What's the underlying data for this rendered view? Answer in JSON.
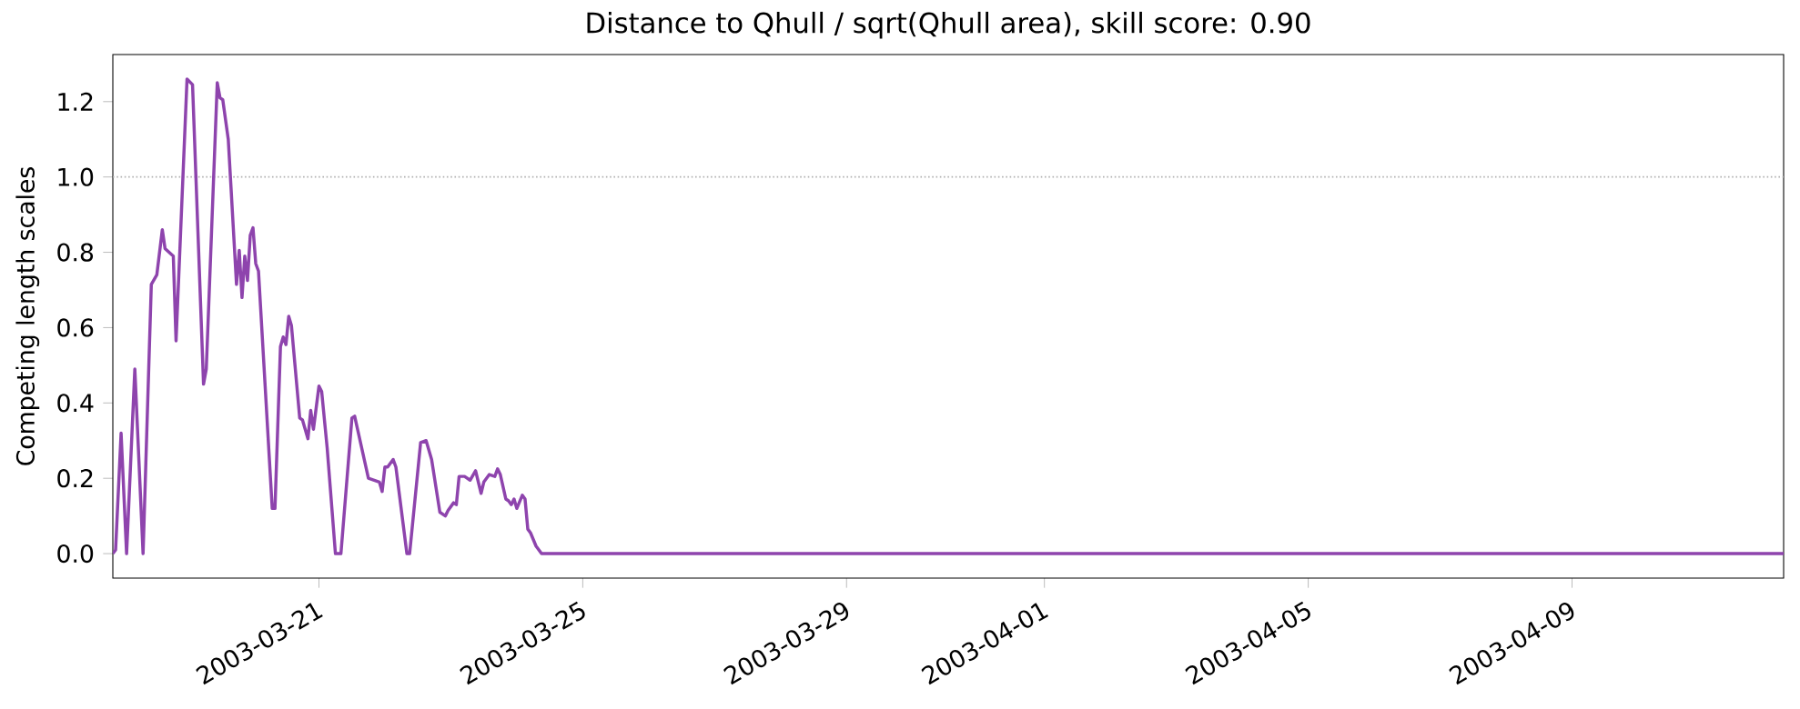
{
  "chart_data": {
    "type": "line",
    "title": "Distance to Qhull / sqrt(Qhull area), skill score: 0.90",
    "ylabel": "Competing length scales",
    "x": [
      "2003-03-17T21:00",
      "2003-03-17T22:00",
      "2003-03-18T00:00",
      "2003-03-18T02:00",
      "2003-03-18T05:00",
      "2003-03-18T08:00",
      "2003-03-18T11:00",
      "2003-03-18T13:00",
      "2003-03-18T15:00",
      "2003-03-18T16:00",
      "2003-03-18T19:00",
      "2003-03-18T20:00",
      "2003-03-19T00:00",
      "2003-03-19T02:00",
      "2003-03-19T06:00",
      "2003-03-19T07:00",
      "2003-03-19T11:00",
      "2003-03-19T12:00",
      "2003-03-19T13:00",
      "2003-03-19T15:00",
      "2003-03-19T18:00",
      "2003-03-19T19:00",
      "2003-03-19T20:00",
      "2003-03-19T21:00",
      "2003-03-19T22:00",
      "2003-03-19T23:00",
      "2003-03-20T00:00",
      "2003-03-20T01:00",
      "2003-03-20T02:00",
      "2003-03-20T07:00",
      "2003-03-20T08:00",
      "2003-03-20T10:00",
      "2003-03-20T11:00",
      "2003-03-20T12:00",
      "2003-03-20T13:00",
      "2003-03-20T14:00",
      "2003-03-20T17:00",
      "2003-03-20T18:00",
      "2003-03-20T20:00",
      "2003-03-20T21:00",
      "2003-03-20T22:00",
      "2003-03-21T00:00",
      "2003-03-21T01:00",
      "2003-03-21T03:00",
      "2003-03-21T06:00",
      "2003-03-21T08:00",
      "2003-03-21T12:00",
      "2003-03-21T13:00",
      "2003-03-21T18:00",
      "2003-03-21T22:00",
      "2003-03-21T23:00",
      "2003-03-22T00:00",
      "2003-03-22T01:00",
      "2003-03-22T03:00",
      "2003-03-22T04:00",
      "2003-03-22T08:00",
      "2003-03-22T09:00",
      "2003-03-22T13:00",
      "2003-03-22T15:00",
      "2003-03-22T17:00",
      "2003-03-22T20:00",
      "2003-03-22T22:00",
      "2003-03-22T23:00",
      "2003-03-23T01:00",
      "2003-03-23T02:00",
      "2003-03-23T03:00",
      "2003-03-23T05:00",
      "2003-03-23T07:00",
      "2003-03-23T09:00",
      "2003-03-23T11:00",
      "2003-03-23T12:00",
      "2003-03-23T14:00",
      "2003-03-23T16:00",
      "2003-03-23T17:00",
      "2003-03-23T18:00",
      "2003-03-23T20:00",
      "2003-03-23T21:00",
      "2003-03-23T22:00",
      "2003-03-23T23:00",
      "2003-03-24T00:00",
      "2003-03-24T02:00",
      "2003-03-24T03:00",
      "2003-03-24T04:00",
      "2003-03-24T05:00",
      "2003-03-24T07:00",
      "2003-03-24T09:00",
      "2003-04-12T05:00"
    ],
    "series": [
      {
        "color": "#8e44ad",
        "values": [
          0,
          0.01,
          0.32,
          0,
          0.49,
          0,
          0.715,
          0.74,
          0.86,
          0.81,
          0.79,
          0.565,
          1.26,
          1.245,
          0.45,
          0.49,
          1.25,
          1.21,
          1.205,
          1.1,
          0.715,
          0.805,
          0.68,
          0.79,
          0.725,
          0.845,
          0.865,
          0.77,
          0.75,
          0.12,
          0.12,
          0.55,
          0.575,
          0.555,
          0.63,
          0.605,
          0.36,
          0.355,
          0.305,
          0.38,
          0.33,
          0.445,
          0.43,
          0.28,
          0,
          0,
          0.36,
          0.365,
          0.2,
          0.19,
          0.165,
          0.23,
          0.23,
          0.25,
          0.23,
          0,
          0,
          0.295,
          0.3,
          0.25,
          0.11,
          0.1,
          0.115,
          0.135,
          0.13,
          0.205,
          0.205,
          0.195,
          0.22,
          0.16,
          0.19,
          0.21,
          0.205,
          0.225,
          0.21,
          0.145,
          0.14,
          0.13,
          0.145,
          0.12,
          0.155,
          0.145,
          0.065,
          0.055,
          0.02,
          0,
          0
        ]
      }
    ],
    "xlim": [
      "2003-03-17T21:00",
      "2003-04-12T05:00"
    ],
    "xticks": [
      "2003-03-21",
      "2003-03-25",
      "2003-03-29",
      "2003-04-01",
      "2003-04-05",
      "2003-04-09"
    ],
    "ylim": [
      -0.065,
      1.325
    ],
    "yticks": [
      {
        "value": 0,
        "label": "0.0"
      },
      {
        "value": 0.2,
        "label": "0.2"
      },
      {
        "value": 0.4,
        "label": "0.4"
      },
      {
        "value": 0.6,
        "label": "0.6"
      },
      {
        "value": 0.8,
        "label": "0.8"
      },
      {
        "value": 1.0,
        "label": "1.0"
      },
      {
        "value": 1.2,
        "label": "1.2"
      }
    ],
    "ref_lines": [
      {
        "axis": "y",
        "value": 1.0,
        "color": "#b0b0b0",
        "line_style": "dotted"
      }
    ],
    "grid": false,
    "marker": "none",
    "line_style": "solid"
  }
}
